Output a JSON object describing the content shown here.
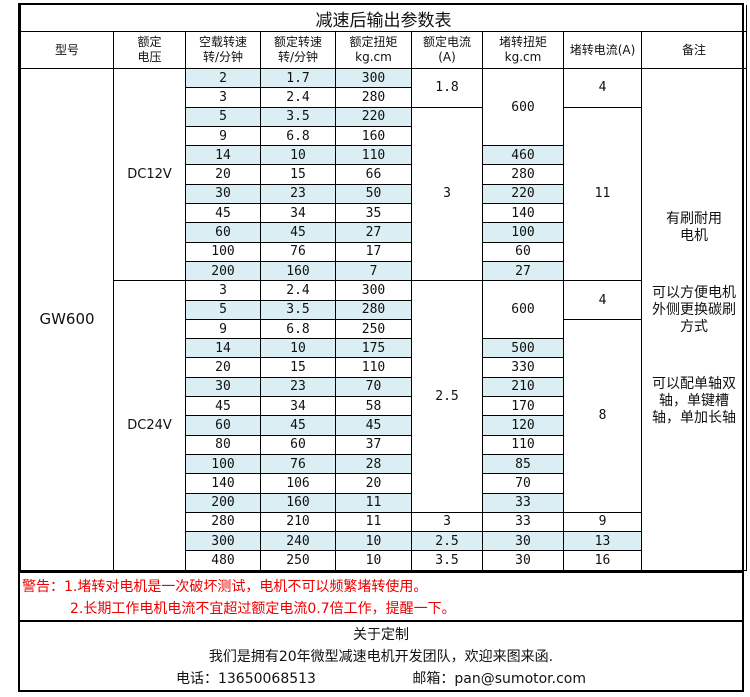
{
  "title": "减速后输出参数表",
  "headers": [
    "型号",
    "额定\n电压",
    "空载转速\n转/分钟",
    "额定转速\n转/分钟",
    "额定扭矩\nkg.cm",
    "额定电流\n(A)",
    "堵转扭矩\nkg.cm",
    "堵转电流(A)",
    "备注"
  ],
  "model": "GW600",
  "voltages": [
    {
      "label": "DC12V",
      "span": 11
    },
    {
      "label": "DC24V",
      "span": 15
    }
  ],
  "rows": [
    {
      "noload": "2",
      "speed": "1.7",
      "torque": "300",
      "shaded": true
    },
    {
      "noload": "3",
      "speed": "2.4",
      "torque": "280",
      "shaded": false
    },
    {
      "noload": "5",
      "speed": "3.5",
      "torque": "220",
      "shaded": true
    },
    {
      "noload": "9",
      "speed": "6.8",
      "torque": "160",
      "shaded": false
    },
    {
      "noload": "14",
      "speed": "10",
      "torque": "110",
      "shaded": true
    },
    {
      "noload": "20",
      "speed": "15",
      "torque": "66",
      "shaded": false
    },
    {
      "noload": "30",
      "speed": "23",
      "torque": "50",
      "shaded": true
    },
    {
      "noload": "45",
      "speed": "34",
      "torque": "35",
      "shaded": false
    },
    {
      "noload": "60",
      "speed": "45",
      "torque": "27",
      "shaded": true
    },
    {
      "noload": "100",
      "speed": "76",
      "torque": "17",
      "shaded": false
    },
    {
      "noload": "200",
      "speed": "160",
      "torque": "7",
      "shaded": true
    },
    {
      "noload": "3",
      "speed": "2.4",
      "torque": "300",
      "shaded": false
    },
    {
      "noload": "5",
      "speed": "3.5",
      "torque": "280",
      "shaded": true
    },
    {
      "noload": "9",
      "speed": "6.8",
      "torque": "250",
      "shaded": false
    },
    {
      "noload": "14",
      "speed": "10",
      "torque": "175",
      "shaded": true
    },
    {
      "noload": "20",
      "speed": "15",
      "torque": "110",
      "shaded": false
    },
    {
      "noload": "30",
      "speed": "23",
      "torque": "70",
      "shaded": true
    },
    {
      "noload": "45",
      "speed": "34",
      "torque": "58",
      "shaded": false
    },
    {
      "noload": "60",
      "speed": "45",
      "torque": "45",
      "shaded": true
    },
    {
      "noload": "80",
      "speed": "60",
      "torque": "37",
      "shaded": false
    },
    {
      "noload": "100",
      "speed": "76",
      "torque": "28",
      "shaded": true
    },
    {
      "noload": "140",
      "speed": "106",
      "torque": "20",
      "shaded": false
    },
    {
      "noload": "200",
      "speed": "160",
      "torque": "11",
      "shaded": true
    },
    {
      "noload": "280",
      "speed": "210",
      "torque": "11",
      "shaded": false
    },
    {
      "noload": "300",
      "speed": "240",
      "torque": "10",
      "shaded": true
    },
    {
      "noload": "480",
      "speed": "250",
      "torque": "10",
      "shaded": false
    }
  ],
  "rated_current": [
    {
      "value": "1.8",
      "span": 2
    },
    {
      "value": "3",
      "span": 9
    },
    {
      "value": "2.5",
      "span": 12
    },
    {
      "value": "3",
      "span": 1
    },
    {
      "value": "2.5",
      "span": 1
    },
    {
      "value": "3.5",
      "span": 1
    }
  ],
  "stall_torque": [
    {
      "value": "600",
      "span": 4
    },
    {
      "value": "460",
      "span": 1
    },
    {
      "value": "280",
      "span": 1
    },
    {
      "value": "220",
      "span": 1
    },
    {
      "value": "140",
      "span": 1
    },
    {
      "value": "100",
      "span": 1
    },
    {
      "value": "60",
      "span": 1
    },
    {
      "value": "27",
      "span": 1
    },
    {
      "value": "600",
      "span": 3
    },
    {
      "value": "500",
      "span": 1
    },
    {
      "value": "330",
      "span": 1
    },
    {
      "value": "210",
      "span": 1
    },
    {
      "value": "170",
      "span": 1
    },
    {
      "value": "120",
      "span": 1
    },
    {
      "value": "110",
      "span": 1
    },
    {
      "value": "85",
      "span": 1
    },
    {
      "value": "70",
      "span": 1
    },
    {
      "value": "33",
      "span": 1
    },
    {
      "value": "33",
      "span": 1
    },
    {
      "value": "30",
      "span": 1
    },
    {
      "value": "30",
      "span": 1
    }
  ],
  "stall_current": [
    {
      "value": "4",
      "span": 2
    },
    {
      "value": "11",
      "span": 9
    },
    {
      "value": "4",
      "span": 2
    },
    {
      "value": "8",
      "span": 10
    },
    {
      "value": "9",
      "span": 1
    },
    {
      "value": "13",
      "span": 1
    },
    {
      "value": "16",
      "span": 1
    }
  ],
  "remarks": [
    "有刷耐用\n电机",
    "可以方便电机\n外侧更换碳刷\n方式",
    "可以配单轴双\n轴，单键槽\n轴，单加长轴"
  ],
  "warning": {
    "line1": "警告：1.堵转对电机是一次破坏测试，电机不可以频繁堵转使用。",
    "line2": "2.长期工作电机电流不宜超过额定电流0.7倍工作，提醒一下。"
  },
  "footer": {
    "heading": "关于定制",
    "intro": "我们是拥有20年微型减速电机开发团队，欢迎来图来函.",
    "phone": "电话：13650068513",
    "email": "邮箱：pan@sumotor.com"
  },
  "colors": {
    "shade": "#dbeef4",
    "warning": "#ee0000"
  }
}
